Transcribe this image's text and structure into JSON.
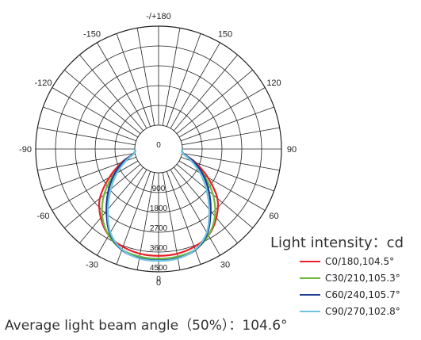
{
  "chart_data": {
    "type": "polar-line",
    "title": "",
    "angle_labels": [
      {
        "text": "-/+180",
        "angle": 180
      },
      {
        "text": "150",
        "angle": 150
      },
      {
        "text": "120",
        "angle": 120
      },
      {
        "text": "90",
        "angle": 90
      },
      {
        "text": "60",
        "angle": 60
      },
      {
        "text": "30",
        "angle": 30
      },
      {
        "text": "0",
        "angle": 0
      },
      {
        "text": "-30",
        "angle": -30
      },
      {
        "text": "-60",
        "angle": -60
      },
      {
        "text": "-90",
        "angle": -90
      },
      {
        "text": "-120",
        "angle": -120
      },
      {
        "text": "-150",
        "angle": -150
      }
    ],
    "radial_labels": [
      "0",
      "900",
      "1800",
      "2700",
      "3600",
      "4500"
    ],
    "radial_max": 4500,
    "legend_title": "Light intensity：cd",
    "series": [
      {
        "name": "C0/180,104.5°",
        "color": "#e8202a",
        "angles": [
          -90,
          -80,
          -70,
          -60,
          -50,
          -40,
          -30,
          -20,
          -10,
          0,
          10,
          20,
          30,
          40,
          50,
          60,
          70,
          80,
          90
        ],
        "values": [
          0,
          50,
          700,
          1500,
          2400,
          3000,
          3450,
          3650,
          3750,
          3770,
          3750,
          3650,
          3450,
          3000,
          2400,
          1500,
          700,
          50,
          0
        ]
      },
      {
        "name": "C30/210,105.3°",
        "color": "#6cbb3c",
        "angles": [
          -90,
          -80,
          -70,
          -60,
          -50,
          -40,
          -30,
          -20,
          -10,
          0,
          10,
          20,
          30,
          40,
          50,
          60,
          70,
          80,
          90
        ],
        "values": [
          0,
          40,
          560,
          1300,
          2150,
          2900,
          3450,
          3780,
          3880,
          3900,
          3880,
          3780,
          3450,
          2900,
          2150,
          1300,
          560,
          40,
          0
        ]
      },
      {
        "name": "C60/240,105.7°",
        "color": "#1e3d8f",
        "angles": [
          -90,
          -80,
          -70,
          -60,
          -50,
          -40,
          -30,
          -20,
          -10,
          0,
          10,
          20,
          30,
          40,
          50,
          60,
          70,
          80,
          90
        ],
        "values": [
          0,
          60,
          640,
          1250,
          1900,
          2600,
          3350,
          3800,
          3950,
          3980,
          3950,
          3800,
          3350,
          2600,
          1900,
          1250,
          640,
          60,
          0
        ]
      },
      {
        "name": "C90/270,102.8°",
        "color": "#6ec3de",
        "angles": [
          -90,
          -80,
          -70,
          -60,
          -50,
          -40,
          -30,
          -20,
          -10,
          0,
          10,
          20,
          30,
          40,
          50,
          60,
          70,
          80,
          90
        ],
        "values": [
          0,
          45,
          500,
          1100,
          1750,
          2500,
          3300,
          3780,
          3970,
          4000,
          3970,
          3780,
          3300,
          2500,
          1750,
          1100,
          500,
          45,
          0
        ]
      }
    ],
    "footer": "Average light beam angle（50%）：104.6°"
  }
}
